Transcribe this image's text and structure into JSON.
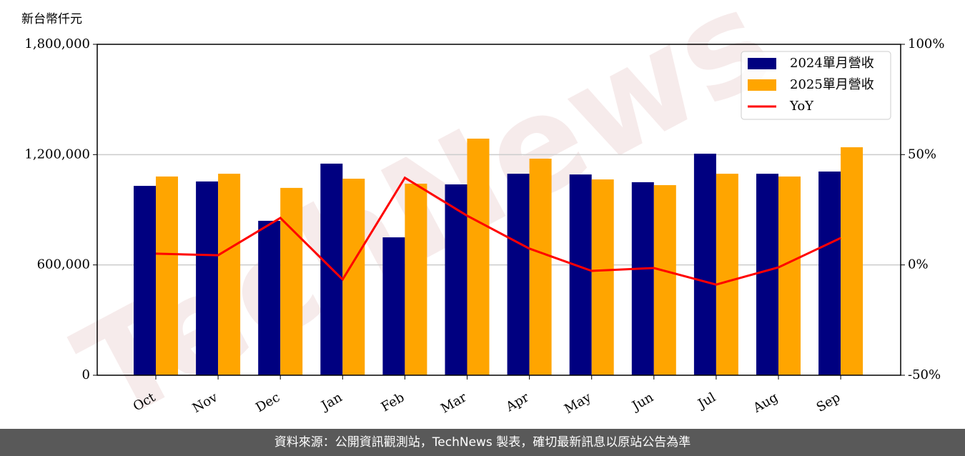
{
  "chart_data": {
    "type": "bar",
    "y_label": "新台幣仟元",
    "watermark": "TechNews",
    "categories": [
      "Oct",
      "Nov",
      "Dec",
      "Jan",
      "Feb",
      "Mar",
      "Apr",
      "May",
      "Jun",
      "Jul",
      "Aug",
      "Sep"
    ],
    "series": [
      {
        "name": "2024單月營收",
        "color": "#000080",
        "type": "bar",
        "values": [
          1030000,
          1054000,
          840000,
          1151000,
          750000,
          1038000,
          1096000,
          1092000,
          1050000,
          1205000,
          1096000,
          1108000
        ]
      },
      {
        "name": "2025單月營收",
        "color": "#ffa500",
        "type": "bar",
        "values": [
          1081000,
          1096000,
          1019000,
          1069000,
          1042000,
          1287000,
          1178000,
          1065000,
          1034000,
          1096000,
          1081000,
          1240000
        ]
      },
      {
        "name": "YoY",
        "color": "#ff0000",
        "type": "line",
        "axis": "y2",
        "values": [
          5.1,
          4.4,
          21.3,
          -6.6,
          39.5,
          22.3,
          7.4,
          -2.7,
          -1.4,
          -8.9,
          -1.1,
          12.2
        ]
      }
    ],
    "ylim": [
      0,
      1800000
    ],
    "yticks": [
      0,
      {
        "value": 600000,
        "label": "600,000"
      },
      {
        "value": 1200000,
        "label": "1,200,000"
      },
      {
        "value": 1800000,
        "label": "1,800,000"
      }
    ],
    "y2lim": [
      -50,
      100
    ],
    "y2ticks": [
      {
        "value": -50,
        "label": "-50%"
      },
      {
        "value": 0,
        "label": "0%"
      },
      {
        "value": 50,
        "label": "50%"
      },
      {
        "value": 100,
        "label": "100%"
      }
    ],
    "grid": true,
    "legend": "upper right"
  },
  "footer": "資料來源：公開資訊觀測站，TechNews 製表，確切最新訊息以原站公告為準"
}
